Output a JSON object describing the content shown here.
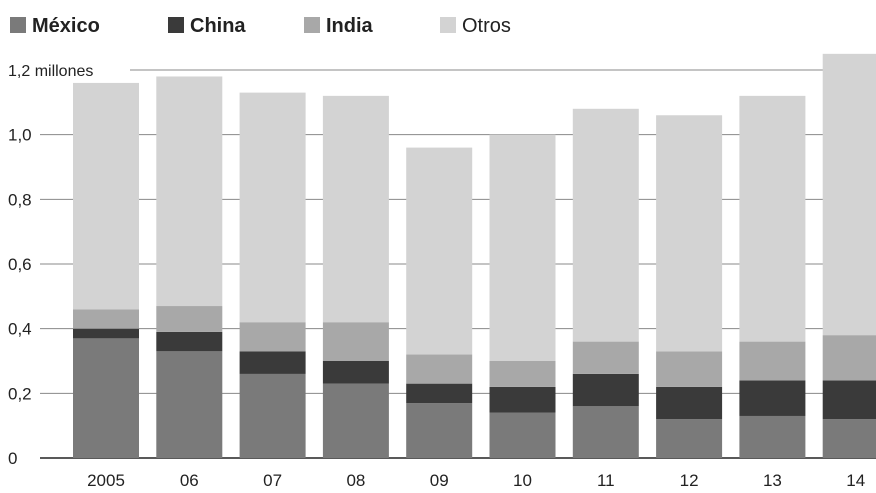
{
  "chart_data": {
    "type": "bar",
    "stacked": true,
    "categories": [
      "2005",
      "06",
      "07",
      "08",
      "09",
      "10",
      "11",
      "12",
      "13",
      "14"
    ],
    "series": [
      {
        "name": "México",
        "color": "#7a7a7a",
        "values": [
          0.37,
          0.33,
          0.26,
          0.23,
          0.17,
          0.14,
          0.16,
          0.12,
          0.13,
          0.12
        ]
      },
      {
        "name": "China",
        "color": "#3a3a3a",
        "values": [
          0.03,
          0.06,
          0.07,
          0.07,
          0.06,
          0.08,
          0.1,
          0.1,
          0.11,
          0.12
        ]
      },
      {
        "name": "India",
        "color": "#a8a8a8",
        "values": [
          0.06,
          0.08,
          0.09,
          0.12,
          0.09,
          0.08,
          0.1,
          0.11,
          0.12,
          0.14
        ]
      },
      {
        "name": "Otros",
        "color": "#d3d3d3",
        "values": [
          0.7,
          0.71,
          0.71,
          0.7,
          0.64,
          0.7,
          0.72,
          0.73,
          0.76,
          0.87
        ]
      }
    ],
    "yticks": [
      "0",
      "0,2",
      "0,4",
      "0,6",
      "0,8",
      "1,0",
      "1,2 millones"
    ],
    "ylim": [
      0,
      1.2
    ],
    "grid": true,
    "legend_position": "top-left"
  }
}
